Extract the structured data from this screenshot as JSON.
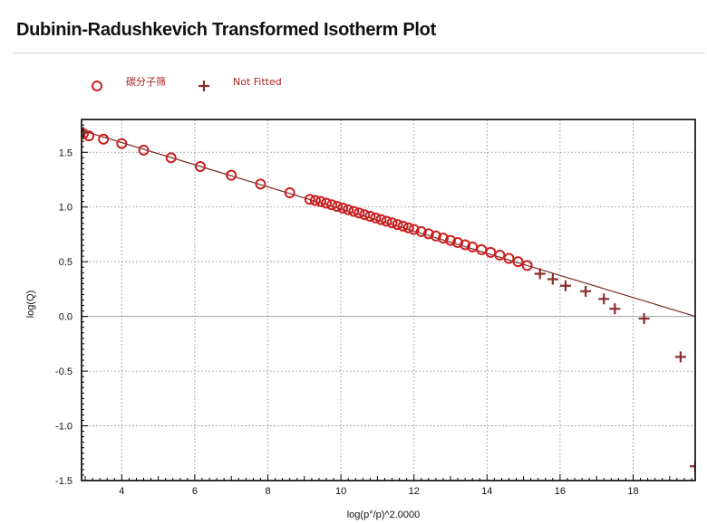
{
  "header": {
    "title": "Dubinin-Radushkevich Transformed Isotherm Plot"
  },
  "colors": {
    "fitted": "#cc1f1f",
    "not_fitted": "#8b2d2d",
    "fit_line": "#7a2a2a",
    "legend_text": "#b22222",
    "grid": "#9a9a9a",
    "zero_line": "#b0b0b0"
  },
  "chart_data": {
    "type": "scatter",
    "title": "",
    "xlabel": "log(p°/p)^2.0000",
    "ylabel": "log(Q)",
    "xlim": [
      2.9,
      19.7
    ],
    "ylim": [
      -1.5,
      1.8
    ],
    "x_ticks": [
      4,
      6,
      8,
      10,
      12,
      14,
      16,
      18
    ],
    "y_ticks": [
      -1.5,
      -1.0,
      -0.5,
      0.0,
      0.5,
      1.0,
      1.5
    ],
    "grid": true,
    "legend_position": "top-left",
    "legend_icons": {
      "fitted": "circle-marker-icon",
      "not_fitted": "plus-marker-icon"
    },
    "series": [
      {
        "name": "碳分子筛",
        "marker": "circle",
        "x": [
          2.95,
          3.1,
          3.5,
          4.0,
          4.6,
          5.35,
          6.15,
          7.0,
          7.8,
          8.6,
          9.15,
          9.3,
          9.45,
          9.6,
          9.75,
          9.9,
          10.05,
          10.2,
          10.35,
          10.5,
          10.65,
          10.8,
          10.95,
          11.1,
          11.25,
          11.4,
          11.55,
          11.7,
          11.85,
          12.0,
          12.2,
          12.4,
          12.6,
          12.8,
          13.0,
          13.2,
          13.4,
          13.6,
          13.85,
          14.1,
          14.35,
          14.6,
          14.85,
          15.1
        ],
        "y": [
          1.67,
          1.65,
          1.62,
          1.58,
          1.52,
          1.45,
          1.37,
          1.29,
          1.21,
          1.13,
          1.07,
          1.06,
          1.05,
          1.035,
          1.02,
          1.005,
          0.99,
          0.975,
          0.96,
          0.945,
          0.93,
          0.915,
          0.9,
          0.885,
          0.87,
          0.855,
          0.84,
          0.825,
          0.81,
          0.795,
          0.775,
          0.755,
          0.735,
          0.715,
          0.695,
          0.675,
          0.655,
          0.635,
          0.61,
          0.585,
          0.56,
          0.53,
          0.5,
          0.465
        ]
      },
      {
        "name": "Not Fitted",
        "marker": "plus",
        "x": [
          2.95,
          15.45,
          15.8,
          16.15,
          16.7,
          17.2,
          17.5,
          18.3,
          19.3,
          19.7
        ],
        "y": [
          1.68,
          0.39,
          0.34,
          0.28,
          0.23,
          0.16,
          0.07,
          -0.02,
          -0.37,
          -1.37
        ]
      }
    ],
    "fit_line": {
      "x": [
        2.9,
        19.7
      ],
      "y": [
        1.7,
        0.0
      ]
    }
  }
}
